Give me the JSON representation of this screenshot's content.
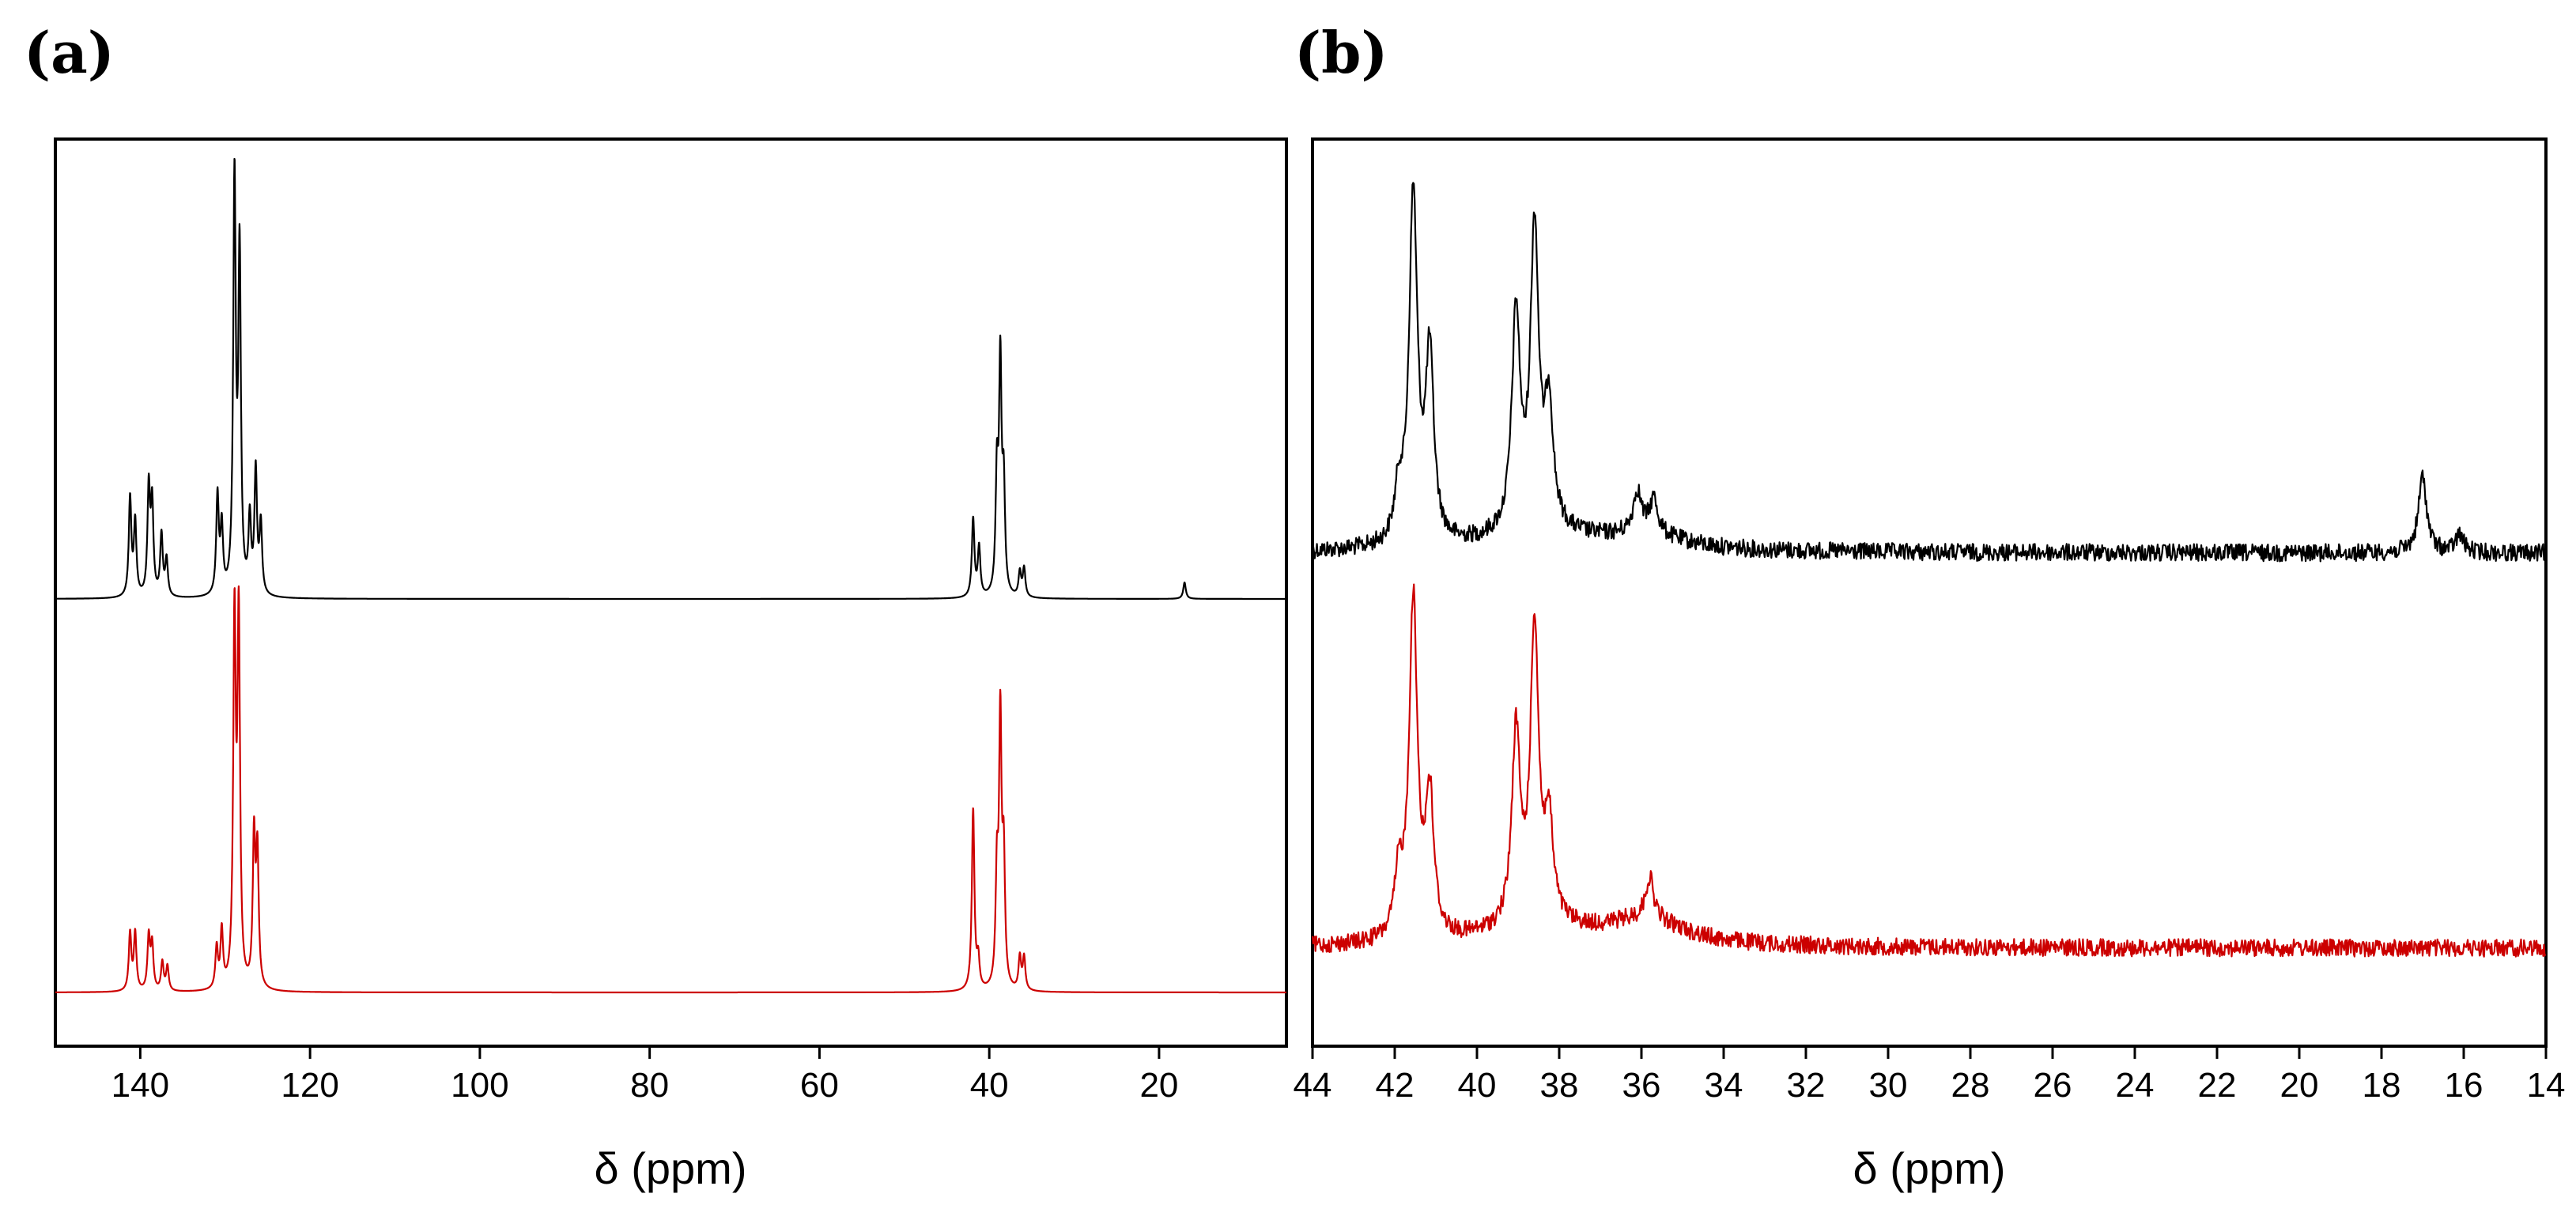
{
  "figure": {
    "panel_a_label": "(a)",
    "panel_b_label": "(b)"
  },
  "colors": {
    "top_trace": "#000000",
    "bottom_trace": "#cc0000",
    "axes": "#000000"
  },
  "chart_data": [
    {
      "type": "line",
      "panel": "(a)",
      "xlabel": "δ (ppm)",
      "ylabel": "",
      "xlim": [
        150,
        5
      ],
      "x_reversed": true,
      "xticks": [
        140,
        120,
        100,
        80,
        60,
        40,
        20
      ],
      "yticks_shown": false,
      "grid": false,
      "legend": "none",
      "series": [
        {
          "color": "#000000",
          "peaks": [
            {
              "ppm": 141.2,
              "height": 0.24
            },
            {
              "ppm": 140.6,
              "height": 0.18
            },
            {
              "ppm": 139.0,
              "height": 0.26
            },
            {
              "ppm": 138.6,
              "height": 0.22
            },
            {
              "ppm": 137.5,
              "height": 0.15
            },
            {
              "ppm": 136.9,
              "height": 0.09
            },
            {
              "ppm": 130.9,
              "height": 0.24
            },
            {
              "ppm": 130.4,
              "height": 0.16
            },
            {
              "ppm": 128.9,
              "height": 1.0
            },
            {
              "ppm": 128.3,
              "height": 0.82
            },
            {
              "ppm": 127.1,
              "height": 0.18
            },
            {
              "ppm": 126.4,
              "height": 0.3
            },
            {
              "ppm": 125.8,
              "height": 0.17
            },
            {
              "ppm": 41.9,
              "height": 0.19
            },
            {
              "ppm": 41.2,
              "height": 0.12
            },
            {
              "ppm": 39.1,
              "height": 0.28
            },
            {
              "ppm": 38.7,
              "height": 0.55
            },
            {
              "ppm": 38.3,
              "height": 0.25
            },
            {
              "ppm": 36.4,
              "height": 0.06
            },
            {
              "ppm": 35.9,
              "height": 0.07
            },
            {
              "ppm": 17.0,
              "height": 0.04
            }
          ]
        },
        {
          "color": "#cc0000",
          "peaks": [
            {
              "ppm": 141.2,
              "height": 0.14
            },
            {
              "ppm": 140.6,
              "height": 0.14
            },
            {
              "ppm": 139.0,
              "height": 0.13
            },
            {
              "ppm": 138.6,
              "height": 0.11
            },
            {
              "ppm": 137.4,
              "height": 0.07
            },
            {
              "ppm": 136.8,
              "height": 0.06
            },
            {
              "ppm": 131.0,
              "height": 0.1
            },
            {
              "ppm": 130.4,
              "height": 0.14
            },
            {
              "ppm": 128.9,
              "height": 0.88
            },
            {
              "ppm": 128.4,
              "height": 0.88
            },
            {
              "ppm": 126.6,
              "height": 0.36
            },
            {
              "ppm": 126.2,
              "height": 0.32
            },
            {
              "ppm": 41.9,
              "height": 0.44
            },
            {
              "ppm": 41.3,
              "height": 0.07
            },
            {
              "ppm": 39.1,
              "height": 0.26
            },
            {
              "ppm": 38.7,
              "height": 0.64
            },
            {
              "ppm": 38.3,
              "height": 0.3
            },
            {
              "ppm": 36.4,
              "height": 0.08
            },
            {
              "ppm": 35.9,
              "height": 0.08
            }
          ]
        }
      ]
    },
    {
      "type": "line",
      "panel": "(b)",
      "xlabel": "δ (ppm)",
      "ylabel": "",
      "xlim": [
        44,
        14
      ],
      "x_reversed": true,
      "xticks": [
        44,
        42,
        40,
        38,
        36,
        34,
        32,
        30,
        28,
        26,
        24,
        22,
        20,
        18,
        16,
        14
      ],
      "yticks_shown": false,
      "grid": false,
      "legend": "none",
      "series": [
        {
          "color": "#000000",
          "peaks": [
            {
              "ppm": 41.9,
              "height": 0.14
            },
            {
              "ppm": 41.55,
              "height": 1.0
            },
            {
              "ppm": 41.15,
              "height": 0.53
            },
            {
              "ppm": 39.05,
              "height": 0.62
            },
            {
              "ppm": 38.6,
              "height": 0.86
            },
            {
              "ppm": 38.25,
              "height": 0.35
            },
            {
              "ppm": 36.1,
              "height": 0.12
            },
            {
              "ppm": 35.7,
              "height": 0.1
            },
            {
              "ppm": 17.0,
              "height": 0.22
            },
            {
              "ppm": 16.1,
              "height": 0.05
            }
          ]
        },
        {
          "color": "#cc0000",
          "peaks": [
            {
              "ppm": 41.9,
              "height": 0.17
            },
            {
              "ppm": 41.55,
              "height": 0.97
            },
            {
              "ppm": 41.15,
              "height": 0.4
            },
            {
              "ppm": 39.05,
              "height": 0.55
            },
            {
              "ppm": 38.6,
              "height": 0.85
            },
            {
              "ppm": 38.25,
              "height": 0.28
            },
            {
              "ppm": 35.8,
              "height": 0.12
            }
          ]
        }
      ]
    }
  ]
}
